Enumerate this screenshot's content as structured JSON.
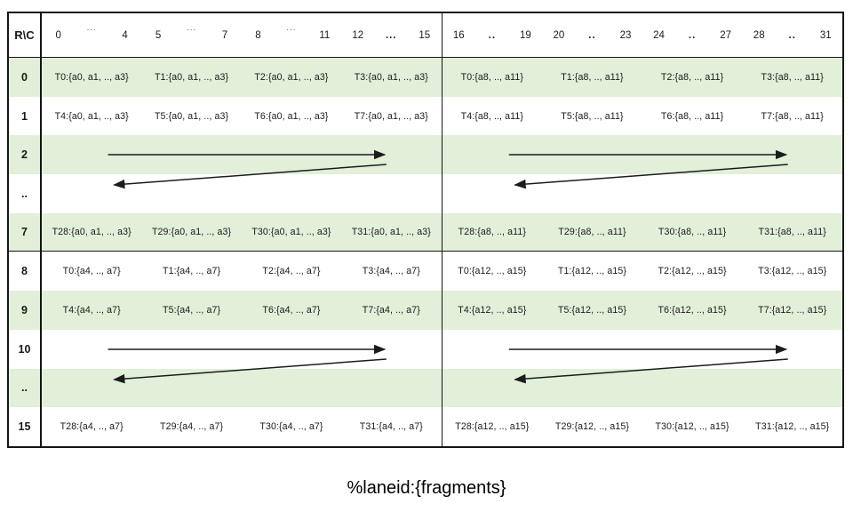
{
  "table": {
    "corner_label": "R\\C",
    "header": {
      "left": [
        "0",
        "···",
        "4",
        "5",
        "···",
        "7",
        "8",
        "···",
        "11",
        "12",
        "...",
        "15"
      ],
      "right": [
        "16",
        "..",
        "19",
        "20",
        "..",
        "23",
        "24",
        "..",
        "27",
        "28",
        "..",
        "31"
      ]
    },
    "rows": [
      {
        "label": "0",
        "shaded": true,
        "type": "cells",
        "left": [
          "T0:{a0, a1, .., a3}",
          "T1:{a0, a1, .., a3}",
          "T2:{a0, a1, .., a3}",
          "T3:{a0, a1, .., a3}"
        ],
        "right": [
          "T0:{a8, .., a11}",
          "T1:{a8, .., a11}",
          "T2:{a8, .., a11}",
          "T3:{a8, .., a11}"
        ]
      },
      {
        "label": "1",
        "shaded": false,
        "type": "cells",
        "left": [
          "T4:{a0, a1, .., a3}",
          "T5:{a0, a1, .., a3}",
          "T6:{a0, a1, .., a3}",
          "T7:{a0, a1, .., a3}"
        ],
        "right": [
          "T4:{a8, .., a11}",
          "T5:{a8, .., a11}",
          "T6:{a8, .., a11}",
          "T7:{a8, .., a11}"
        ]
      },
      {
        "label": "2",
        "shaded": true,
        "type": "arrow-right"
      },
      {
        "label": "..",
        "shaded": false,
        "type": "arrow-wrap-left"
      },
      {
        "label": "7",
        "shaded": true,
        "type": "cells",
        "group_end": true,
        "left": [
          "T28:{a0, a1, .., a3}",
          "T29:{a0, a1, .., a3}",
          "T30:{a0, a1, .., a3}",
          "T31:{a0, a1, .., a3}"
        ],
        "right": [
          "T28:{a8, .., a11}",
          "T29:{a8, .., a11}",
          "T30:{a8, .., a11}",
          "T31:{a8, .., a11}"
        ]
      },
      {
        "label": "8",
        "shaded": false,
        "type": "cells",
        "left": [
          "T0:{a4, .., a7}",
          "T1:{a4, .., a7}",
          "T2:{a4, .., a7}",
          "T3:{a4, .., a7}"
        ],
        "right": [
          "T0:{a12, .., a15}",
          "T1:{a12, .., a15}",
          "T2:{a12, .., a15}",
          "T3:{a12, .., a15}"
        ]
      },
      {
        "label": "9",
        "shaded": true,
        "type": "cells",
        "left": [
          "T4:{a4, .., a7}",
          "T5:{a4, .., a7}",
          "T6:{a4, .., a7}",
          "T7:{a4, .., a7}"
        ],
        "right": [
          "T4:{a12, .., a15}",
          "T5:{a12, .., a15}",
          "T6:{a12, .., a15}",
          "T7:{a12, .., a15}"
        ]
      },
      {
        "label": "10",
        "shaded": false,
        "type": "arrow-right"
      },
      {
        "label": "..",
        "shaded": true,
        "type": "arrow-wrap-left"
      },
      {
        "label": "15",
        "shaded": false,
        "type": "cells",
        "left": [
          "T28:{a4, .., a7}",
          "T29:{a4, .., a7}",
          "T30:{a4, .., a7}",
          "T31:{a4, .., a7}"
        ],
        "right": [
          "T28:{a12, .., a15}",
          "T29:{a12, .., a15}",
          "T30:{a12, .., a15}",
          "T31:{a12, .., a15}"
        ]
      }
    ]
  },
  "caption": "%laneid:{fragments}",
  "colors": {
    "row_shade": "#e2efd9",
    "border": "#151515",
    "arrow": "#1c1c1c",
    "text": "#1a1a1a"
  }
}
